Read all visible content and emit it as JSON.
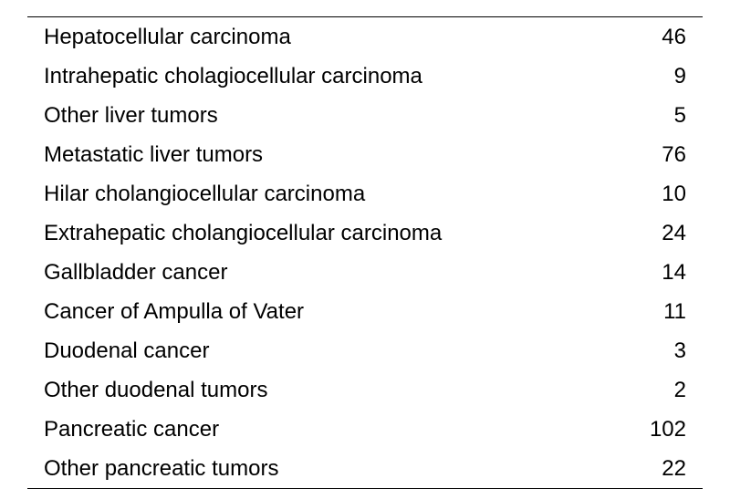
{
  "table": {
    "type": "table",
    "background_color": "#ffffff",
    "text_color": "#000000",
    "border_color": "#000000",
    "border_width": 1.5,
    "font_size": 24,
    "row_padding_vertical": 7.5,
    "row_padding_horizontal": 18,
    "columns": [
      "label",
      "value"
    ],
    "rows": [
      {
        "label": "Hepatocellular carcinoma",
        "value": "46"
      },
      {
        "label": "Intrahepatic cholagiocellular carcinoma",
        "value": "9"
      },
      {
        "label": "Other liver tumors",
        "value": "5"
      },
      {
        "label": "Metastatic liver tumors",
        "value": "76"
      },
      {
        "label": "Hilar cholangiocellular carcinoma",
        "value": "10"
      },
      {
        "label": "Extrahepatic cholangiocellular carcinoma",
        "value": "24"
      },
      {
        "label": "Gallbladder cancer",
        "value": "14"
      },
      {
        "label": "Cancer of Ampulla of Vater",
        "value": "11"
      },
      {
        "label": "Duodenal cancer",
        "value": "3"
      },
      {
        "label": "Other duodenal tumors",
        "value": "2"
      },
      {
        "label": "Pancreatic cancer",
        "value": "102"
      },
      {
        "label": "Other pancreatic tumors",
        "value": "22"
      }
    ]
  }
}
